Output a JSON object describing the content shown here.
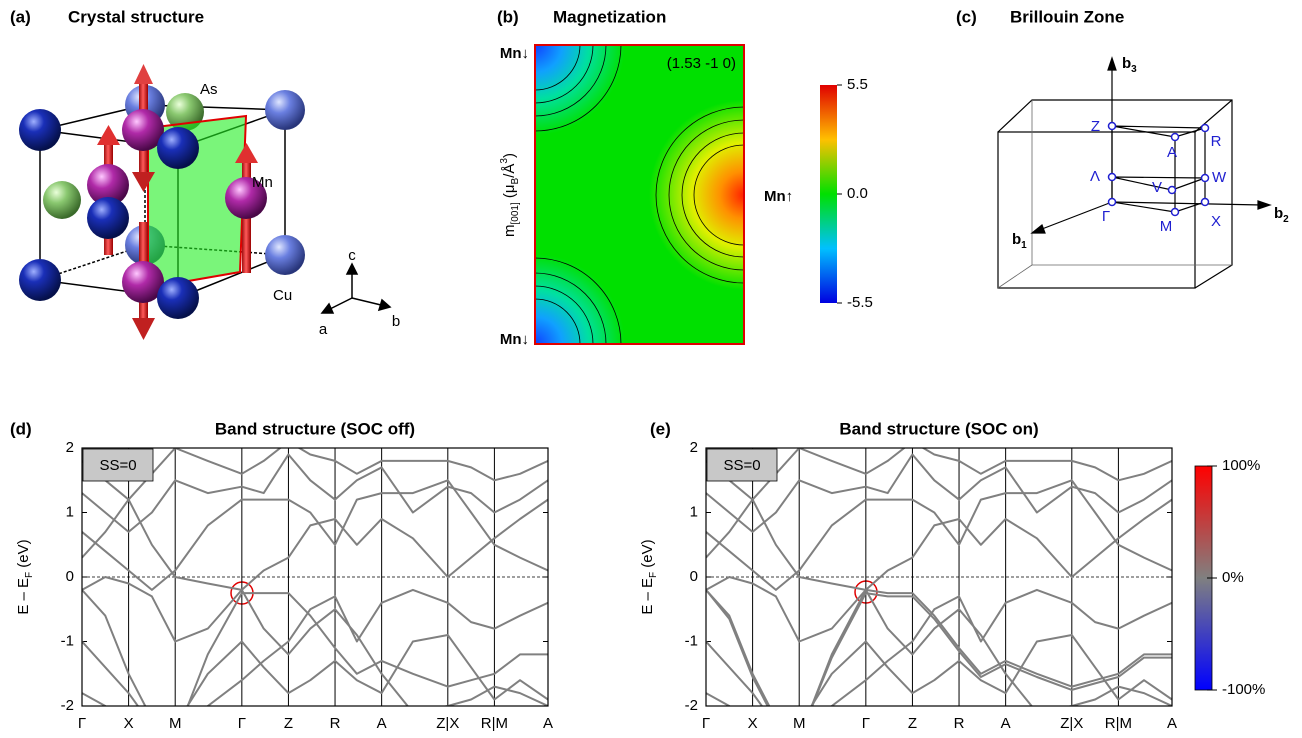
{
  "panels": [
    {
      "label": "(a)",
      "title": "Crystal structure",
      "atom_labels": [
        "As",
        "Mn",
        "Cu"
      ],
      "axis_labels": [
        "c",
        "a",
        "b"
      ]
    },
    {
      "label": "(b)",
      "title": "Magnetization",
      "annotation": "(1.53 -1 0)",
      "site_labels": [
        "Mn↓",
        "Mn↑",
        "Mn↓"
      ],
      "ylabel": [
        "m",
        "[001]",
        " (μ",
        "B",
        "/Å",
        "3",
        ")"
      ],
      "colorbar": {
        "lim": [
          -5.5,
          5.5
        ],
        "ticks": [
          5.5,
          {
            "value": 0,
            "label": "0.0"
          },
          -5.5
        ]
      }
    },
    {
      "label": "(c)",
      "title": "Brillouin Zone",
      "points": [
        "Z",
        "A",
        "R",
        "Λ",
        "V",
        "W",
        "Γ",
        "M",
        "X"
      ],
      "axes": [
        {
          "symbol": "b",
          "index": "3"
        },
        {
          "symbol": "b",
          "index": "1"
        },
        {
          "symbol": "b",
          "index": "2"
        }
      ]
    }
  ],
  "chart_data": [
    {
      "type": "line",
      "label": "(d)",
      "title": "Band structure (SOC off)",
      "box_label": "SS=0",
      "ylabel": [
        "E – E",
        "F",
        " (eV)"
      ],
      "x": [
        0,
        0.5,
        1,
        1.5,
        2,
        2.7,
        3.43,
        3.9,
        4.43,
        4.9,
        5.43,
        5.9,
        6.43,
        7.1,
        7.85,
        8.35,
        8.85,
        9.4,
        10
      ],
      "xlim": [
        0,
        10
      ],
      "xticks": [
        {
          "value": 0,
          "label": "Γ"
        },
        {
          "value": 1,
          "label": "X"
        },
        {
          "value": 2,
          "label": "M"
        },
        {
          "value": 3.43,
          "label": "Γ"
        },
        {
          "value": 4.43,
          "label": "Z"
        },
        {
          "value": 5.43,
          "label": "R"
        },
        {
          "value": 6.43,
          "label": "A"
        },
        {
          "value": 7.85,
          "label": "Z|X"
        },
        {
          "value": 8.85,
          "label": "R|M"
        },
        {
          "value": 10,
          "label": "A"
        }
      ],
      "ylim": [
        -2,
        2
      ],
      "yticks": [
        2,
        1,
        0,
        -1,
        -2
      ],
      "series": [
        {
          "color": "#808080",
          "values": [
            -0.2,
            -0.6,
            -1.5,
            -2.2,
            -2.5,
            -1.2,
            -0.25,
            -0.25,
            -0.25,
            -0.6,
            -1.1,
            -1.5,
            -1.3,
            -1.5,
            -1.7,
            -1.6,
            -1.5,
            -1.2,
            -1.2
          ]
        },
        {
          "color": "#808080",
          "values": [
            -0.2,
            0.0,
            -0.1,
            -0.3,
            -1.0,
            -0.8,
            -0.2,
            -0.8,
            -1.2,
            -0.8,
            -0.5,
            -0.9,
            -1.5,
            -2.1,
            -2.0,
            -1.9,
            -1.7,
            -1.8,
            -2.0
          ]
        },
        {
          "color": "#808080",
          "values": [
            0.3,
            0.7,
            1.2,
            0.5,
            0.0,
            -0.1,
            -0.2,
            0.1,
            0.3,
            0.8,
            0.9,
            0.5,
            0.9,
            0.6,
            0.0,
            0.3,
            0.6,
            0.9,
            1.2
          ]
        },
        {
          "color": "#808080",
          "values": [
            0.7,
            0.4,
            0.1,
            -0.2,
            0.1,
            0.8,
            1.2,
            1.2,
            1.2,
            1.0,
            0.5,
            1.2,
            1.3,
            1.3,
            1.5,
            1.0,
            0.5,
            0.3,
            0.1
          ]
        },
        {
          "color": "#808080",
          "values": [
            1.3,
            1.0,
            0.7,
            1.0,
            1.5,
            1.3,
            1.4,
            1.3,
            1.9,
            1.5,
            1.2,
            1.5,
            1.7,
            1.0,
            1.4,
            1.3,
            1.0,
            1.2,
            1.5
          ]
        },
        {
          "color": "#808080",
          "values": [
            1.8,
            1.5,
            1.2,
            1.6,
            2.0,
            1.8,
            1.6,
            1.8,
            2.1,
            1.9,
            1.8,
            1.6,
            1.8,
            1.8,
            1.8,
            1.7,
            1.5,
            1.6,
            1.8
          ]
        },
        {
          "color": "#808080",
          "values": [
            -1.0,
            -1.4,
            -1.8,
            -2.3,
            -2.4,
            -2.0,
            -1.6,
            -1.3,
            -1.0,
            -0.5,
            -0.3,
            -1.0,
            -0.4,
            -0.2,
            -0.4,
            -0.7,
            -0.8,
            -0.6,
            -0.4
          ]
        },
        {
          "color": "#808080",
          "values": [
            -1.8,
            -2.0,
            -2.3,
            -2.5,
            -2.3,
            -1.5,
            -1.0,
            -1.4,
            -1.8,
            -1.6,
            -1.3,
            -1.6,
            -1.8,
            -1.0,
            -0.9,
            -1.4,
            -1.9,
            -1.6,
            -1.9
          ]
        }
      ]
    },
    {
      "type": "line",
      "label": "(e)",
      "title": "Band structure (SOC on)",
      "box_label": "SS=0",
      "ylabel": [
        "E – E",
        "F",
        " (eV)"
      ],
      "x": [
        0,
        0.5,
        1,
        1.5,
        2,
        2.7,
        3.43,
        3.9,
        4.43,
        4.9,
        5.43,
        5.9,
        6.43,
        7.1,
        7.85,
        8.35,
        8.85,
        9.4,
        10
      ],
      "xlim": [
        0,
        10
      ],
      "xticks": [
        {
          "value": 0,
          "label": "Γ"
        },
        {
          "value": 1,
          "label": "X"
        },
        {
          "value": 2,
          "label": "M"
        },
        {
          "value": 3.43,
          "label": "Γ"
        },
        {
          "value": 4.43,
          "label": "Z"
        },
        {
          "value": 5.43,
          "label": "R"
        },
        {
          "value": 6.43,
          "label": "A"
        },
        {
          "value": 7.85,
          "label": "Z|X"
        },
        {
          "value": 8.85,
          "label": "R|M"
        },
        {
          "value": 10,
          "label": "A"
        }
      ],
      "ylim": [
        -2,
        2
      ],
      "yticks": [
        2,
        1,
        0,
        -1,
        -2
      ],
      "colorbar": {
        "lim": [
          -100,
          100
        ],
        "ticks": [
          {
            "value": 100,
            "label": "100%"
          },
          {
            "value": 0,
            "label": "0%"
          },
          {
            "value": -100,
            "label": "-100%"
          }
        ]
      },
      "series": [
        {
          "color": "#808080",
          "values": [
            -0.2,
            -0.6,
            -1.5,
            -2.2,
            -2.5,
            -1.2,
            -0.2,
            -0.25,
            -0.25,
            -0.6,
            -1.1,
            -1.5,
            -1.3,
            -1.5,
            -1.7,
            -1.6,
            -1.5,
            -1.2,
            -1.2
          ]
        },
        {
          "color": "#808080",
          "values": [
            -0.2,
            -0.65,
            -1.55,
            -2.25,
            -2.5,
            -1.25,
            -0.25,
            -0.3,
            -0.3,
            -0.65,
            -1.15,
            -1.55,
            -1.35,
            -1.55,
            -1.75,
            -1.65,
            -1.55,
            -1.25,
            -1.25
          ]
        },
        {
          "color": "#808080",
          "values": [
            -0.2,
            0.0,
            -0.1,
            -0.3,
            -1.0,
            -0.8,
            -0.2,
            -0.8,
            -1.2,
            -0.8,
            -0.5,
            -0.9,
            -1.5,
            -2.1,
            -2.0,
            -1.9,
            -1.7,
            -1.8,
            -2.0
          ]
        },
        {
          "color": "#808080",
          "values": [
            0.3,
            0.7,
            1.2,
            0.5,
            0.0,
            -0.1,
            -0.2,
            0.1,
            0.3,
            0.8,
            0.9,
            0.5,
            0.9,
            0.6,
            0.0,
            0.3,
            0.6,
            0.9,
            1.2
          ]
        },
        {
          "color": "#808080",
          "values": [
            0.7,
            0.4,
            0.1,
            -0.2,
            0.1,
            0.8,
            1.2,
            1.2,
            1.2,
            1.0,
            0.5,
            1.2,
            1.3,
            1.3,
            1.5,
            1.0,
            0.5,
            0.3,
            0.1
          ]
        },
        {
          "color": "#808080",
          "values": [
            1.3,
            1.0,
            0.7,
            1.0,
            1.5,
            1.3,
            1.4,
            1.3,
            1.9,
            1.5,
            1.2,
            1.5,
            1.7,
            1.0,
            1.4,
            1.3,
            1.0,
            1.2,
            1.5
          ]
        },
        {
          "color": "#808080",
          "values": [
            1.8,
            1.5,
            1.2,
            1.6,
            2.0,
            1.8,
            1.6,
            1.8,
            2.1,
            1.9,
            1.8,
            1.6,
            1.8,
            1.8,
            1.8,
            1.7,
            1.5,
            1.6,
            1.8
          ]
        },
        {
          "color": "#808080",
          "values": [
            -1.0,
            -1.4,
            -1.8,
            -2.3,
            -2.4,
            -2.0,
            -1.6,
            -1.3,
            -1.0,
            -0.5,
            -0.3,
            -1.0,
            -0.4,
            -0.2,
            -0.4,
            -0.7,
            -0.8,
            -0.6,
            -0.4
          ]
        },
        {
          "color": "#808080",
          "values": [
            -1.8,
            -2.0,
            -2.3,
            -2.5,
            -2.3,
            -1.5,
            -1.0,
            -1.4,
            -1.8,
            -1.6,
            -1.3,
            -1.6,
            -1.8,
            -1.0,
            -0.9,
            -1.4,
            -1.9,
            -1.6,
            -1.9
          ]
        }
      ]
    }
  ]
}
